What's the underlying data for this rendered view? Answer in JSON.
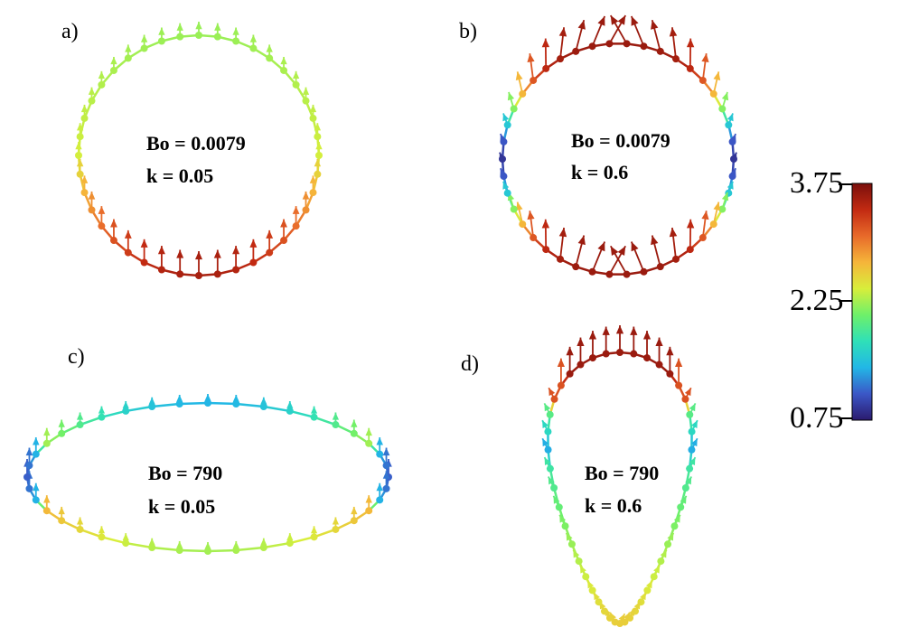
{
  "panels": [
    {
      "letter": "a)",
      "bo": "Bo = 0.0079",
      "k": "k = 0.05"
    },
    {
      "letter": "b)",
      "bo": "Bo = 0.0079",
      "k": "k = 0.6"
    },
    {
      "letter": "c)",
      "bo": "Bo = 790",
      "k": "k = 0.05"
    },
    {
      "letter": "d)",
      "bo": "Bo = 790",
      "k": "k = 0.6"
    }
  ],
  "colorbar": {
    "ticks": [
      "3.75",
      "2.25",
      "0.75"
    ],
    "min": 0.75,
    "max": 3.75,
    "colors": [
      "#2b1a6e",
      "#3b57c7",
      "#22b7e6",
      "#2fe0b8",
      "#6ef06a",
      "#d8ee3b",
      "#f5b53a",
      "#e86a2a",
      "#c22a12",
      "#7a0f0c"
    ]
  }
}
